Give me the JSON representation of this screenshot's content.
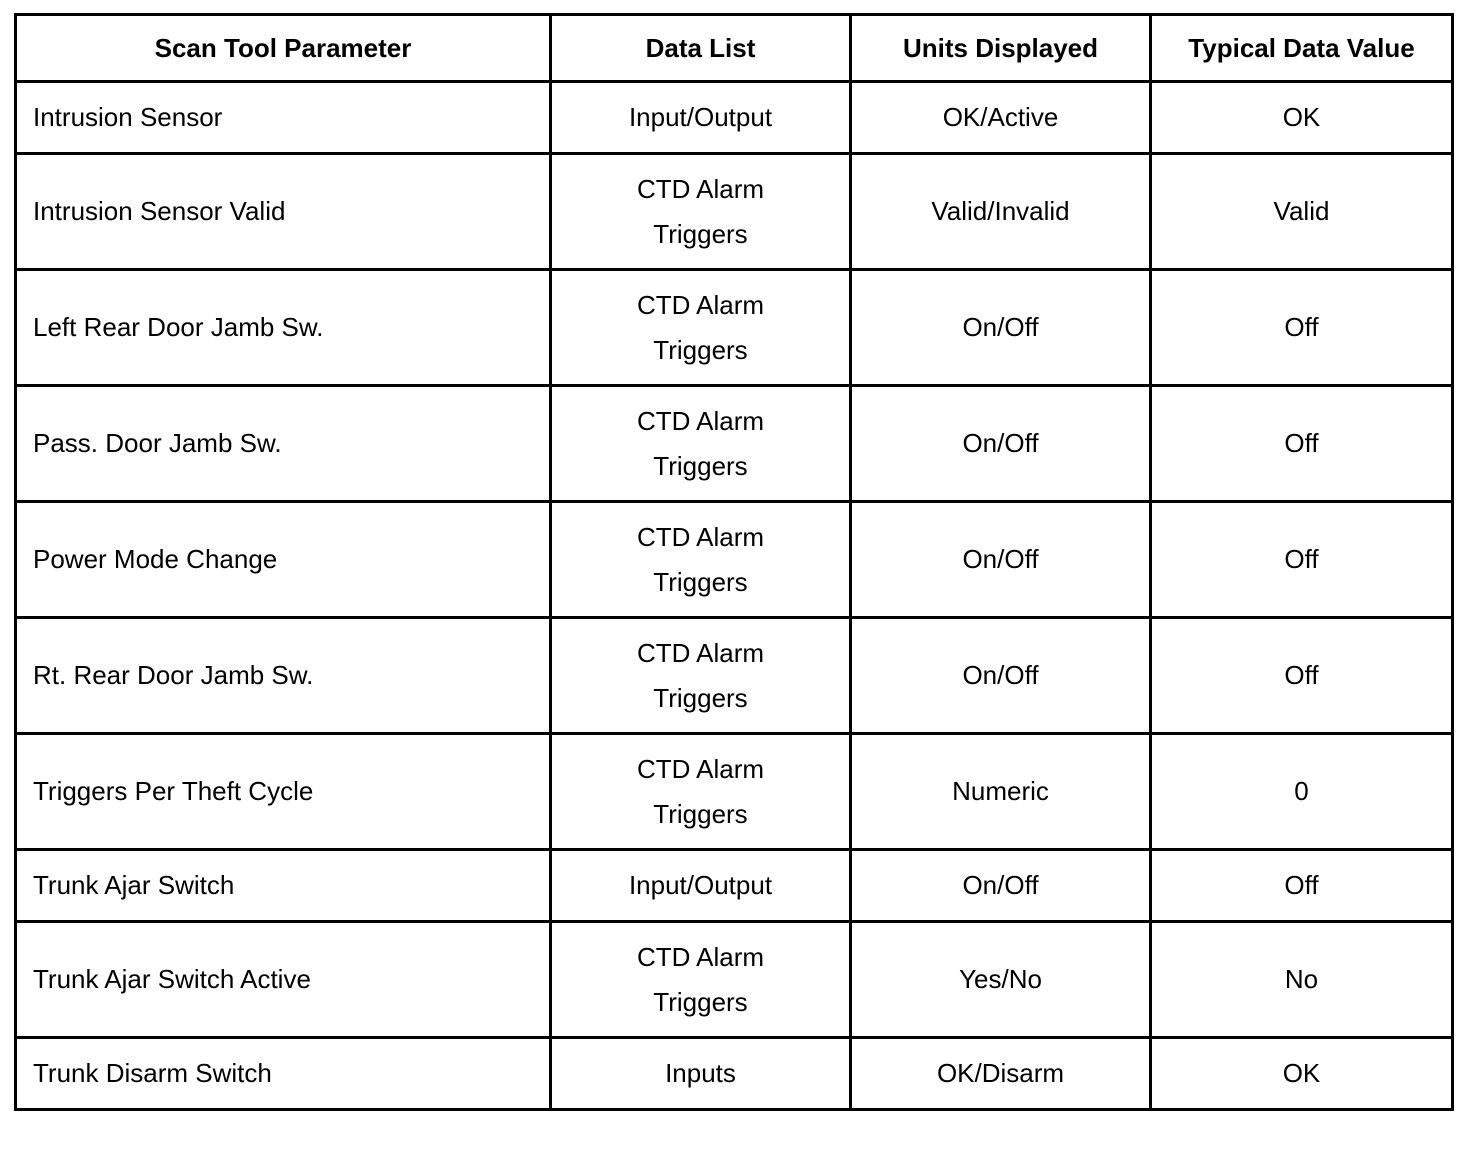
{
  "table": {
    "headers": [
      "Scan Tool Parameter",
      "Data List",
      "Units Displayed",
      "Typical Data Value"
    ],
    "rows": [
      [
        "Intrusion Sensor",
        "Input/Output",
        "OK/Active",
        "OK"
      ],
      [
        "Intrusion Sensor Valid",
        "CTD Alarm Triggers",
        "Valid/Invalid",
        "Valid"
      ],
      [
        "Left Rear Door Jamb Sw.",
        "CTD Alarm Triggers",
        "On/Off",
        "Off"
      ],
      [
        "Pass. Door Jamb Sw.",
        "CTD Alarm Triggers",
        "On/Off",
        "Off"
      ],
      [
        "Power Mode Change",
        "CTD Alarm Triggers",
        "On/Off",
        "Off"
      ],
      [
        "Rt. Rear Door Jamb Sw.",
        "CTD Alarm Triggers",
        "On/Off",
        "Off"
      ],
      [
        "Triggers Per Theft Cycle",
        "CTD Alarm Triggers",
        "Numeric",
        "0"
      ],
      [
        "Trunk Ajar Switch",
        "Input/Output",
        "On/Off",
        "Off"
      ],
      [
        "Trunk Ajar Switch Active",
        "CTD Alarm Triggers",
        "Yes/No",
        "No"
      ],
      [
        "Trunk Disarm Switch",
        "Inputs",
        "OK/Disarm",
        "OK"
      ]
    ]
  }
}
